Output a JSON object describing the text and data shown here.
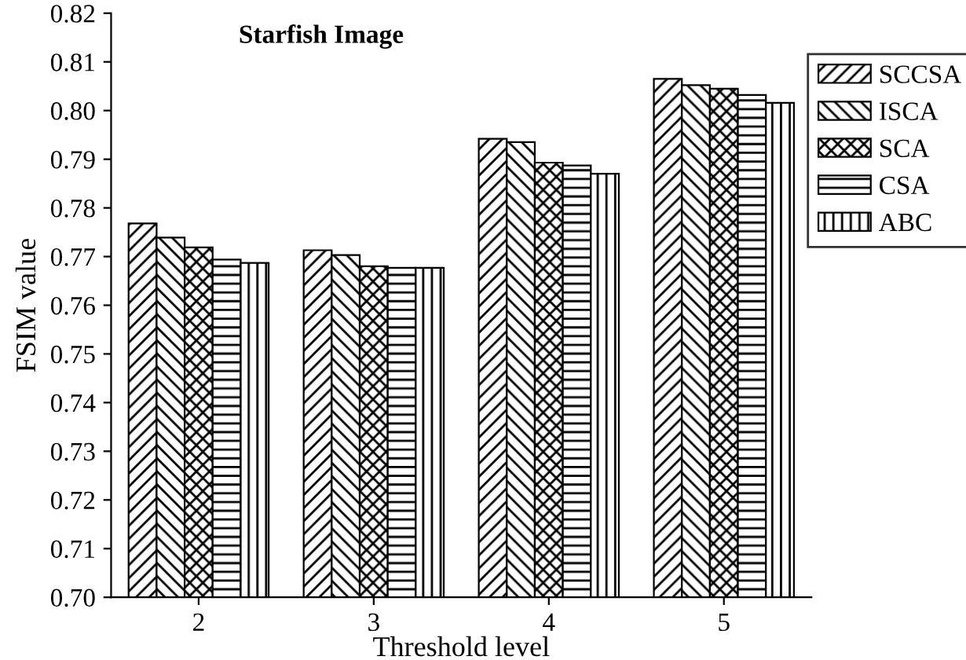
{
  "chart_data": {
    "type": "bar",
    "title": "Starfish Image",
    "xlabel": "Threshold level",
    "ylabel": "FSIM value",
    "categories": [
      "2",
      "3",
      "4",
      "5"
    ],
    "series": [
      {
        "name": "SCCSA",
        "color": "#000000",
        "values": [
          0.7768,
          0.7713,
          0.7942,
          0.8065
        ]
      },
      {
        "name": "ISCA",
        "color": "#000000",
        "values": [
          0.7739,
          0.7703,
          0.7935,
          0.8052
        ]
      },
      {
        "name": "SCA",
        "color": "#000000",
        "values": [
          0.7719,
          0.768,
          0.7893,
          0.8045
        ]
      },
      {
        "name": "CSA",
        "color": "#000000",
        "values": [
          0.7694,
          0.7677,
          0.7887,
          0.8032
        ]
      },
      {
        "name": "ABC",
        "color": "#000000",
        "values": [
          0.7687,
          0.7677,
          0.787,
          0.8016
        ]
      }
    ],
    "ylim": [
      0.7,
      0.82
    ],
    "yticks": [
      {
        "value": 0.7,
        "label": "0.70"
      },
      0.71,
      0.72,
      0.73,
      0.74,
      0.75,
      0.76,
      0.77,
      0.78,
      0.79,
      {
        "value": 0.8,
        "label": "0.80"
      },
      0.81,
      0.82
    ],
    "grid": false,
    "legend": "top right"
  }
}
